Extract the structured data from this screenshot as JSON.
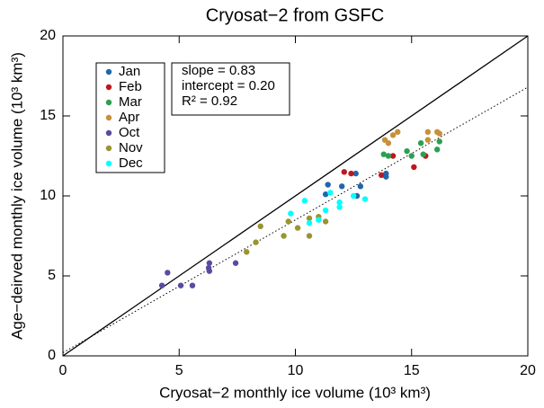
{
  "chart_data": {
    "type": "scatter",
    "title": "Cryosat−2 from GSFC",
    "x_label": "Cryosat−2 monthly ice volume (10³ km³)",
    "y_label": "Age−deirved monthly ice volume (10³ km³)",
    "xlim": [
      0,
      20
    ],
    "ylim": [
      0,
      20
    ],
    "xticks": [
      0,
      5,
      10,
      15,
      20
    ],
    "yticks": [
      0,
      5,
      10,
      15,
      20
    ],
    "grid": false,
    "legend": "upper left",
    "annotations": [
      {
        "text": "slope = 0.83",
        "value": 0.83
      },
      {
        "text": "intercept = 0.20",
        "value": 0.2
      },
      {
        "text": "R² = 0.92",
        "value": 0.92
      }
    ],
    "series": [
      {
        "name": "Jan",
        "color": "#2166ac",
        "x": [
          11.3,
          11.4,
          12.0,
          12.6,
          12.65,
          12.8,
          13.9,
          13.9
        ],
        "y": [
          10.1,
          10.7,
          10.6,
          11.4,
          10.0,
          10.6,
          11.2,
          11.4
        ]
      },
      {
        "name": "Feb",
        "color": "#c0171e",
        "x": [
          12.1,
          12.4,
          13.7,
          14.2,
          15.1,
          15.6
        ],
        "y": [
          11.5,
          11.4,
          11.3,
          12.5,
          11.8,
          12.5
        ]
      },
      {
        "name": "Mar",
        "color": "#2ca050",
        "x": [
          13.8,
          14.0,
          14.8,
          15.0,
          15.4,
          15.5,
          16.1,
          16.2
        ],
        "y": [
          12.6,
          12.5,
          12.8,
          12.5,
          13.3,
          12.6,
          12.9,
          13.4
        ]
      },
      {
        "name": "Apr",
        "color": "#c8903a",
        "x": [
          13.85,
          14.0,
          14.2,
          14.4,
          15.7,
          15.7,
          16.1,
          16.2
        ],
        "y": [
          13.5,
          13.3,
          13.8,
          14.0,
          13.5,
          14.0,
          14.0,
          13.9
        ]
      },
      {
        "name": "Oct",
        "color": "#5b4ba0",
        "x": [
          4.26,
          4.5,
          5.07,
          5.57,
          6.27,
          6.3,
          6.3,
          7.43
        ],
        "y": [
          4.4,
          5.2,
          4.4,
          4.4,
          5.5,
          5.8,
          5.3,
          5.8
        ]
      },
      {
        "name": "Nov",
        "color": "#9a9430",
        "x": [
          7.9,
          8.3,
          8.5,
          9.5,
          9.7,
          10.1,
          10.6,
          10.6,
          11.0,
          11.3
        ],
        "y": [
          6.5,
          7.1,
          8.1,
          7.5,
          8.4,
          8.0,
          7.5,
          8.6,
          8.7,
          8.4
        ]
      },
      {
        "name": "Dec",
        "color": "#00ffff",
        "x": [
          9.8,
          10.4,
          10.6,
          11.0,
          11.3,
          11.5,
          11.9,
          11.9,
          12.5,
          13.0
        ],
        "y": [
          8.9,
          9.7,
          8.3,
          8.5,
          9.1,
          10.2,
          9.3,
          9.6,
          10.0,
          9.8
        ]
      }
    ]
  }
}
